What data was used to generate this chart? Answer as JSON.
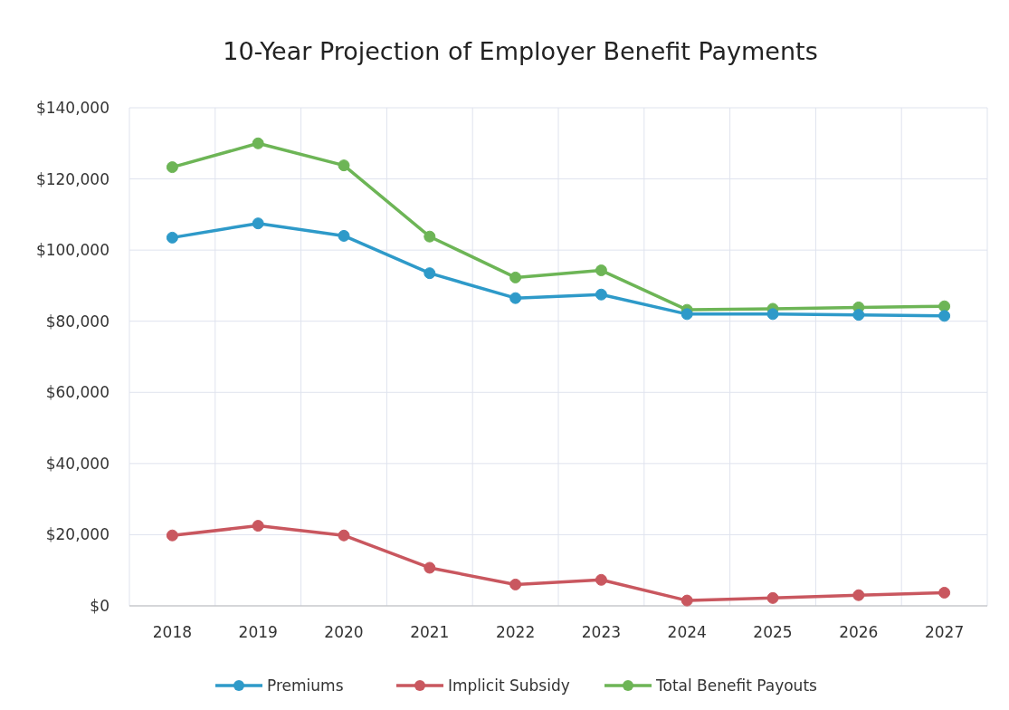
{
  "chart_data": {
    "type": "line",
    "title": "10-Year Projection of Employer Benefit Payments",
    "categories": [
      "2018",
      "2019",
      "2020",
      "2021",
      "2022",
      "2023",
      "2024",
      "2025",
      "2026",
      "2027"
    ],
    "series": [
      {
        "name": "Premiums",
        "color": "#2e9ac9",
        "values": [
          103500,
          107500,
          104000,
          93500,
          86500,
          87500,
          82000,
          82000,
          81800,
          81500
        ]
      },
      {
        "name": "Implicit Subsidy",
        "color": "#c9575f",
        "values": [
          19800,
          22500,
          19800,
          10700,
          6000,
          7300,
          1500,
          2200,
          3000,
          3700
        ]
      },
      {
        "name": "Total Benefit Payouts",
        "color": "#6db556",
        "values": [
          123300,
          130000,
          123800,
          103800,
          92300,
          94300,
          83200,
          83500,
          83900,
          84200
        ]
      }
    ],
    "ylim": [
      0,
      140000
    ],
    "yticks": [
      {
        "value": 0,
        "label": "$0"
      },
      {
        "value": 20000,
        "label": "$20,000"
      },
      {
        "value": 40000,
        "label": "$40,000"
      },
      {
        "value": 60000,
        "label": "$60,000"
      },
      {
        "value": 80000,
        "label": "$80,000"
      },
      {
        "value": 100000,
        "label": "$100,000"
      },
      {
        "value": 120000,
        "label": "$120,000"
      },
      {
        "value": 140000,
        "label": "$140,000"
      }
    ],
    "grid": true,
    "legend": "bottom",
    "marker": "circle",
    "line_style": "solid"
  }
}
